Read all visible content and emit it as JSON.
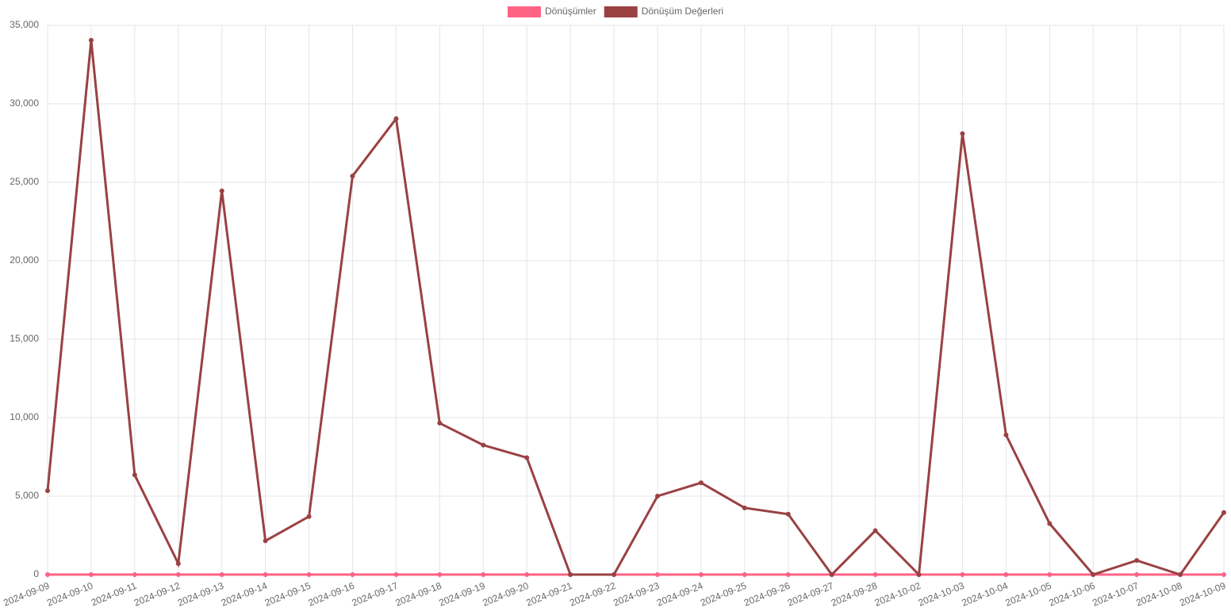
{
  "chart_data": {
    "type": "line",
    "categories": [
      "2024-09-09",
      "2024-09-10",
      "2024-09-11",
      "2024-09-12",
      "2024-09-13",
      "2024-09-14",
      "2024-09-15",
      "2024-09-16",
      "2024-09-17",
      "2024-09-18",
      "2024-09-19",
      "2024-09-20",
      "2024-09-21",
      "2024-09-22",
      "2024-09-23",
      "2024-09-24",
      "2024-09-25",
      "2024-09-26",
      "2024-09-27",
      "2024-09-28",
      "2024-10-02",
      "2024-10-03",
      "2024-10-04",
      "2024-10-05",
      "2024-10-06",
      "2024-10-07",
      "2024-10-08",
      "2024-10-09"
    ],
    "series": [
      {
        "name": "Dönüşümler",
        "color": "#ff6384",
        "values": [
          0,
          0,
          0,
          0,
          0,
          0,
          0,
          0,
          0,
          0,
          0,
          0,
          0,
          0,
          0,
          0,
          0,
          0,
          0,
          0,
          0,
          0,
          0,
          0,
          0,
          0,
          0,
          0
        ]
      },
      {
        "name": "Dönüşüm Değerleri",
        "color": "#9a4143",
        "values": [
          5350,
          34050,
          6350,
          700,
          24450,
          2150,
          3700,
          25400,
          29050,
          9650,
          8250,
          7450,
          0,
          0,
          5000,
          5850,
          4250,
          3850,
          0,
          2800,
          0,
          28100,
          8900,
          3250,
          0,
          900,
          0,
          3950
        ]
      }
    ],
    "ylim": [
      0,
      35000
    ],
    "yticks": [
      {
        "value": 0,
        "label": "0"
      },
      {
        "value": 5000,
        "label": "5,000"
      },
      {
        "value": 10000,
        "label": "10,000"
      },
      {
        "value": 15000,
        "label": "15,000"
      },
      {
        "value": 20000,
        "label": "20,000"
      },
      {
        "value": 25000,
        "label": "25,000"
      },
      {
        "value": 30000,
        "label": "30,000"
      },
      {
        "value": 35000,
        "label": "35,000"
      }
    ],
    "grid": true,
    "legend": "top"
  }
}
